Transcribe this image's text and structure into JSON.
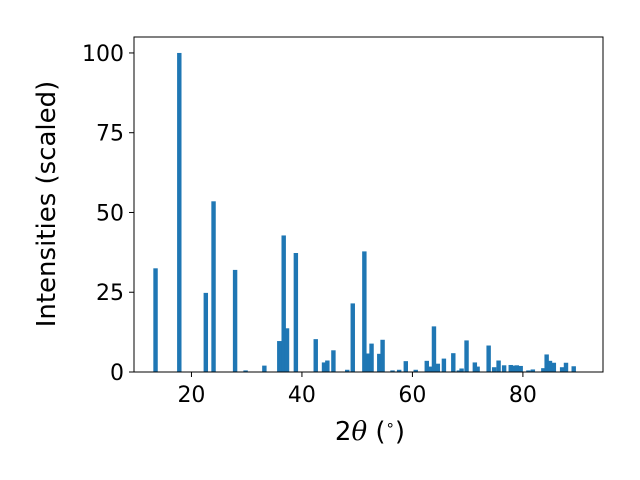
{
  "chart_data": {
    "type": "bar",
    "xlabel": "2θ (°)",
    "xlabel_parts": {
      "prefix": "2",
      "symbol": "θ",
      "suffix": " (",
      "degree": "∘",
      "close": ")"
    },
    "ylabel": "Intensities (scaled)",
    "xlim": [
      9.6,
      94.5
    ],
    "ylim": [
      0,
      105
    ],
    "xticks": [
      20,
      40,
      60,
      80
    ],
    "yticks": [
      0,
      25,
      50,
      75,
      100
    ],
    "grid": false,
    "legend": "none",
    "bar_color": "#1f77b4",
    "bar_width": 0.8,
    "x": [
      13.5,
      17.8,
      22.6,
      24.0,
      27.9,
      29.8,
      33.2,
      35.9,
      36.7,
      37.3,
      38.9,
      42.5,
      44.0,
      44.6,
      45.7,
      48.2,
      49.2,
      51.3,
      52.0,
      52.6,
      54.0,
      54.6,
      56.4,
      57.6,
      58.8,
      60.6,
      62.6,
      63.2,
      63.9,
      64.6,
      65.7,
      67.4,
      68.4,
      68.9,
      69.8,
      71.3,
      71.8,
      73.8,
      74.8,
      75.6,
      76.6,
      77.8,
      78.3,
      78.9,
      79.6,
      81.0,
      81.8,
      83.7,
      84.3,
      84.9,
      85.6,
      87.1,
      87.8,
      89.2
    ],
    "values": [
      32.5,
      100.0,
      24.8,
      53.5,
      32.0,
      0.5,
      2.0,
      9.7,
      42.8,
      13.7,
      37.3,
      10.3,
      3.0,
      3.6,
      6.8,
      0.7,
      21.5,
      37.8,
      5.8,
      8.9,
      5.7,
      10.1,
      0.5,
      0.7,
      3.4,
      0.7,
      3.5,
      1.7,
      14.3,
      2.6,
      4.2,
      5.9,
      0.5,
      1.1,
      9.9,
      3.0,
      1.7,
      8.3,
      1.5,
      3.6,
      2.1,
      2.2,
      2.0,
      2.1,
      1.9,
      0.5,
      0.8,
      1.2,
      5.5,
      3.5,
      2.9,
      1.5,
      2.9,
      1.8
    ]
  }
}
